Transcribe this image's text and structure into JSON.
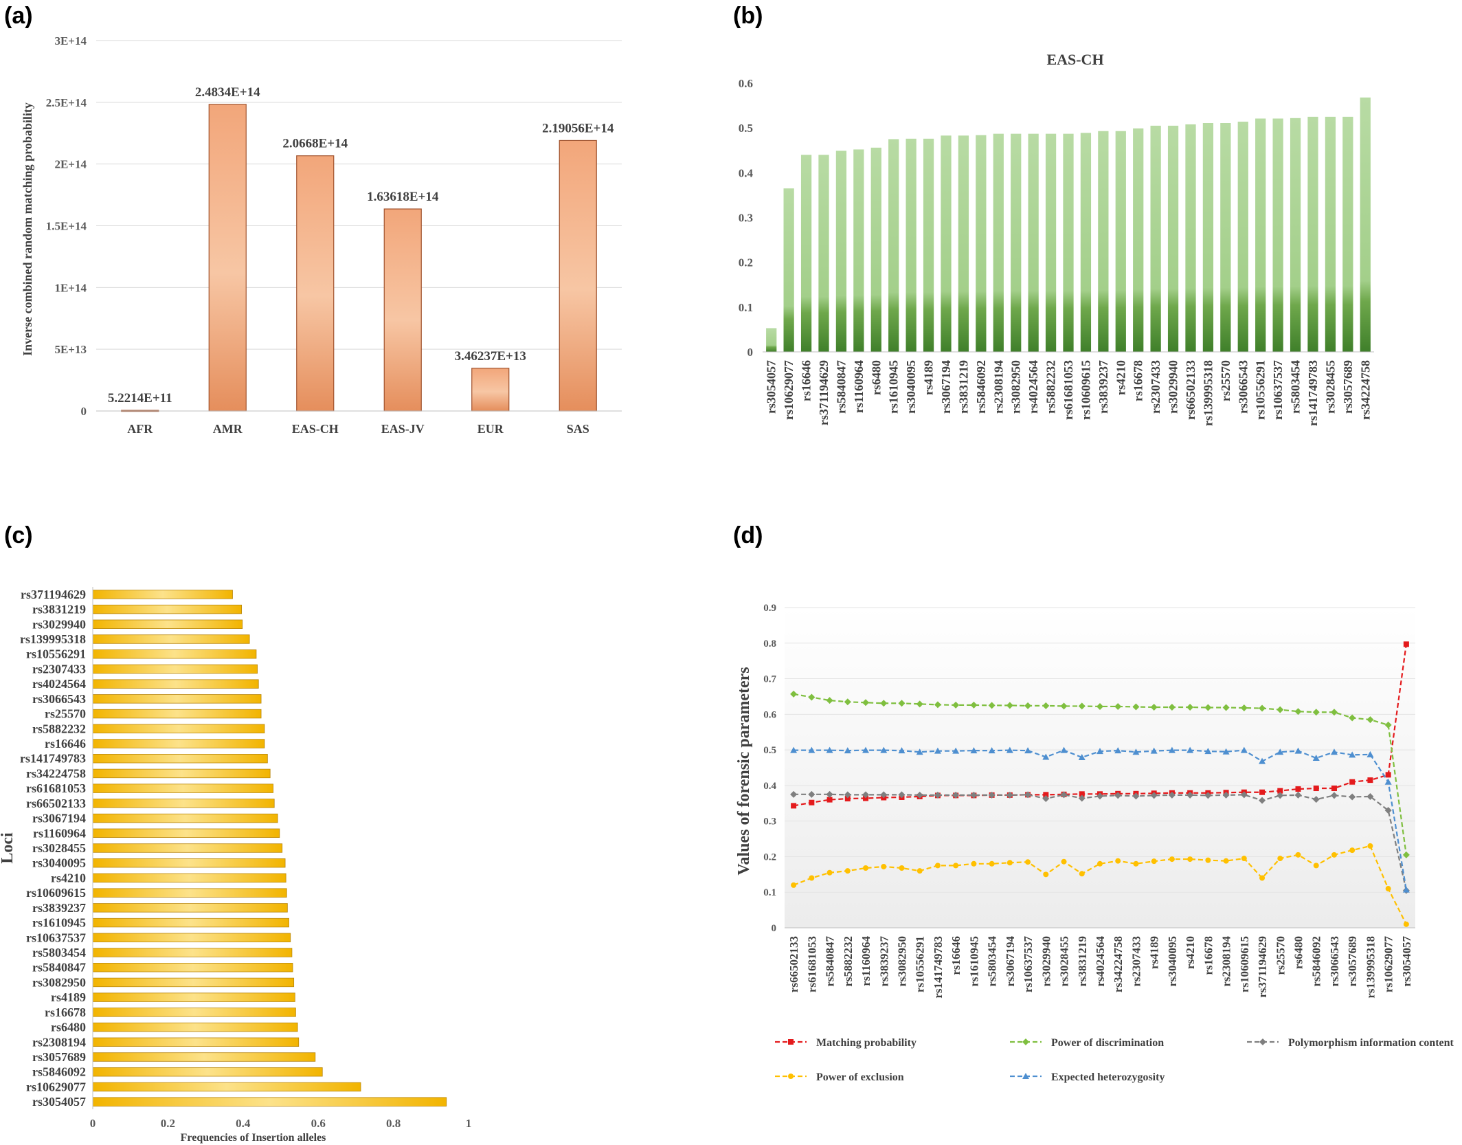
{
  "panels": {
    "a": "(a)",
    "b": "(b)",
    "c": "(c)",
    "d": "(d)"
  },
  "chart_data": [
    {
      "id": "a",
      "type": "bar",
      "title": "",
      "xlabel": "",
      "ylabel": "Inverse combined random matching probability",
      "categories": [
        "AFR",
        "AMR",
        "EAS-CH",
        "EAS-JV",
        "EUR",
        "SAS"
      ],
      "values": [
        522140000000.0,
        248340000000000.0,
        206680000000000.0,
        163618000000000.0,
        34623700000000.0,
        219056000000000.0
      ],
      "data_labels": [
        "5.2214E+11",
        "2.4834E+14",
        "2.0668E+14",
        "1.63618E+14",
        "3.46237E+13",
        "2.19056E+14"
      ],
      "ylim": [
        0,
        300000000000000.0
      ],
      "yticks": [
        0,
        50000000000000.0,
        100000000000000.0,
        150000000000000.0,
        200000000000000.0,
        250000000000000.0,
        300000000000000.0
      ],
      "ytick_labels": [
        "0",
        "5E+13",
        "1E+14",
        "1.5E+14",
        "2E+14",
        "2.5E+14",
        "3E+14"
      ],
      "grid": true,
      "color": "#f0a878"
    },
    {
      "id": "b",
      "type": "bar",
      "title": "EAS-CH",
      "xlabel": "",
      "ylabel": "",
      "categories": [
        "rs3054057",
        "rs10629077",
        "rs16646",
        "rs371194629",
        "rs5840847",
        "rs1160964",
        "rs6480",
        "rs1610945",
        "rs3040095",
        "rs4189",
        "rs3067194",
        "rs3831219",
        "rs5846092",
        "rs2308194",
        "rs3082950",
        "rs4024564",
        "rs5882232",
        "rs61681053",
        "rs10609615",
        "rs3839237",
        "rs4210",
        "rs16678",
        "rs2307433",
        "rs3029940",
        "rs66502133",
        "rs139995318",
        "rs25570",
        "rs3066543",
        "rs10556291",
        "rs10637537",
        "rs5803454",
        "rs141749783",
        "rs3028455",
        "rs3057689",
        "rs34224758"
      ],
      "values": [
        0.053,
        0.365,
        0.44,
        0.44,
        0.449,
        0.452,
        0.456,
        0.475,
        0.476,
        0.476,
        0.483,
        0.483,
        0.484,
        0.487,
        0.487,
        0.487,
        0.487,
        0.487,
        0.489,
        0.493,
        0.493,
        0.499,
        0.505,
        0.505,
        0.508,
        0.511,
        0.511,
        0.514,
        0.521,
        0.521,
        0.522,
        0.525,
        0.525,
        0.525,
        0.568
      ],
      "ylim": [
        0,
        0.6
      ],
      "yticks": [
        0,
        0.1,
        0.2,
        0.3,
        0.4,
        0.5,
        0.6
      ],
      "ytick_labels": [
        "0",
        "0.1",
        "0.2",
        "0.3",
        "0.4",
        "0.5",
        "0.6"
      ],
      "grid": false,
      "color": "#a9d18e"
    },
    {
      "id": "c",
      "type": "bar",
      "orientation": "horizontal",
      "title": "",
      "xlabel": "Frequencies of Insertion alleles",
      "ylabel": "Loci",
      "categories": [
        "rs371194629",
        "rs3831219",
        "rs3029940",
        "rs139995318",
        "rs10556291",
        "rs2307433",
        "rs4024564",
        "rs3066543",
        "rs25570",
        "rs5882232",
        "rs16646",
        "rs141749783",
        "rs34224758",
        "rs61681053",
        "rs66502133",
        "rs3067194",
        "rs1160964",
        "rs3028455",
        "rs3040095",
        "rs4210",
        "rs10609615",
        "rs3839237",
        "rs1610945",
        "rs10637537",
        "rs5803454",
        "rs5840847",
        "rs3082950",
        "rs4189",
        "rs16678",
        "rs6480",
        "rs2308194",
        "rs3057689",
        "rs5846092",
        "rs10629077",
        "rs3054057"
      ],
      "values": [
        0.372,
        0.396,
        0.398,
        0.417,
        0.435,
        0.438,
        0.441,
        0.448,
        0.448,
        0.457,
        0.457,
        0.465,
        0.472,
        0.48,
        0.483,
        0.492,
        0.497,
        0.504,
        0.512,
        0.514,
        0.516,
        0.518,
        0.522,
        0.526,
        0.53,
        0.532,
        0.535,
        0.538,
        0.54,
        0.545,
        0.548,
        0.592,
        0.611,
        0.713,
        0.941
      ],
      "xlim": [
        0,
        1
      ],
      "xticks": [
        0,
        0.2,
        0.4,
        0.6,
        0.8,
        1
      ],
      "xtick_labels": [
        "0",
        "0.2",
        "0.4",
        "0.6",
        "0.8",
        "1"
      ],
      "grid": false,
      "color": "#f5b800"
    },
    {
      "id": "d",
      "type": "line",
      "title": "",
      "xlabel": "",
      "ylabel": "Values of forensic parameters",
      "categories": [
        "rs66502133",
        "rs61681053",
        "rs5840847",
        "rs5882232",
        "rs1160964",
        "rs3839237",
        "rs3082950",
        "rs10556291",
        "rs141749783",
        "rs16646",
        "rs1610945",
        "rs5803454",
        "rs3067194",
        "rs10637537",
        "rs3029940",
        "rs3028455",
        "rs3831219",
        "rs4024564",
        "rs34224758",
        "rs2307433",
        "rs4189",
        "rs3040095",
        "rs4210",
        "rs16678",
        "rs2308194",
        "rs10609615",
        "rs371194629",
        "rs25570",
        "rs6480",
        "rs5846092",
        "rs3066543",
        "rs3057689",
        "rs139995318",
        "rs10629077",
        "rs3054057"
      ],
      "ylim": [
        0,
        0.9
      ],
      "yticks": [
        0,
        0.1,
        0.2,
        0.3,
        0.4,
        0.5,
        0.6,
        0.7,
        0.8,
        0.9
      ],
      "ytick_labels": [
        "0",
        "0.1",
        "0.2",
        "0.3",
        "0.4",
        "0.5",
        "0.6",
        "0.7",
        "0.8",
        "0.9"
      ],
      "grid": true,
      "series": [
        {
          "name": "Matching probability",
          "color": "#e41a1c",
          "marker": "square",
          "values": [
            0.343,
            0.352,
            0.36,
            0.363,
            0.364,
            0.366,
            0.367,
            0.369,
            0.372,
            0.372,
            0.372,
            0.373,
            0.373,
            0.374,
            0.374,
            0.375,
            0.376,
            0.376,
            0.377,
            0.377,
            0.378,
            0.379,
            0.379,
            0.379,
            0.38,
            0.381,
            0.381,
            0.385,
            0.39,
            0.392,
            0.392,
            0.41,
            0.415,
            0.43,
            0.797
          ]
        },
        {
          "name": "Power of discrimination",
          "color": "#7fbf3f",
          "marker": "diamond",
          "values": [
            0.657,
            0.648,
            0.639,
            0.635,
            0.633,
            0.631,
            0.631,
            0.629,
            0.627,
            0.626,
            0.626,
            0.625,
            0.625,
            0.624,
            0.624,
            0.623,
            0.623,
            0.622,
            0.622,
            0.621,
            0.62,
            0.62,
            0.62,
            0.619,
            0.619,
            0.618,
            0.617,
            0.613,
            0.608,
            0.606,
            0.606,
            0.59,
            0.585,
            0.57,
            0.205
          ]
        },
        {
          "name": "Polymorphism information content",
          "color": "#7f7f7f",
          "marker": "diamond",
          "values": [
            0.375,
            0.375,
            0.375,
            0.374,
            0.374,
            0.374,
            0.374,
            0.373,
            0.373,
            0.373,
            0.373,
            0.373,
            0.373,
            0.374,
            0.363,
            0.374,
            0.364,
            0.37,
            0.372,
            0.37,
            0.372,
            0.373,
            0.373,
            0.372,
            0.373,
            0.374,
            0.358,
            0.372,
            0.373,
            0.361,
            0.372,
            0.368,
            0.369,
            0.33,
            0.105
          ]
        },
        {
          "name": "Power of exclusion",
          "color": "#ffc000",
          "marker": "circle",
          "values": [
            0.12,
            0.14,
            0.155,
            0.16,
            0.168,
            0.172,
            0.168,
            0.16,
            0.175,
            0.175,
            0.18,
            0.18,
            0.183,
            0.185,
            0.15,
            0.186,
            0.152,
            0.18,
            0.188,
            0.18,
            0.187,
            0.193,
            0.193,
            0.19,
            0.188,
            0.195,
            0.14,
            0.195,
            0.205,
            0.175,
            0.205,
            0.218,
            0.23,
            0.11,
            0.01
          ]
        },
        {
          "name": "Expected heterozygosity",
          "color": "#4e8fd0",
          "marker": "triangle",
          "values": [
            0.499,
            0.499,
            0.499,
            0.498,
            0.499,
            0.499,
            0.498,
            0.494,
            0.497,
            0.497,
            0.498,
            0.498,
            0.499,
            0.498,
            0.48,
            0.499,
            0.479,
            0.496,
            0.498,
            0.494,
            0.497,
            0.499,
            0.499,
            0.496,
            0.495,
            0.499,
            0.468,
            0.494,
            0.497,
            0.477,
            0.494,
            0.486,
            0.487,
            0.41,
            0.107
          ]
        }
      ]
    }
  ]
}
